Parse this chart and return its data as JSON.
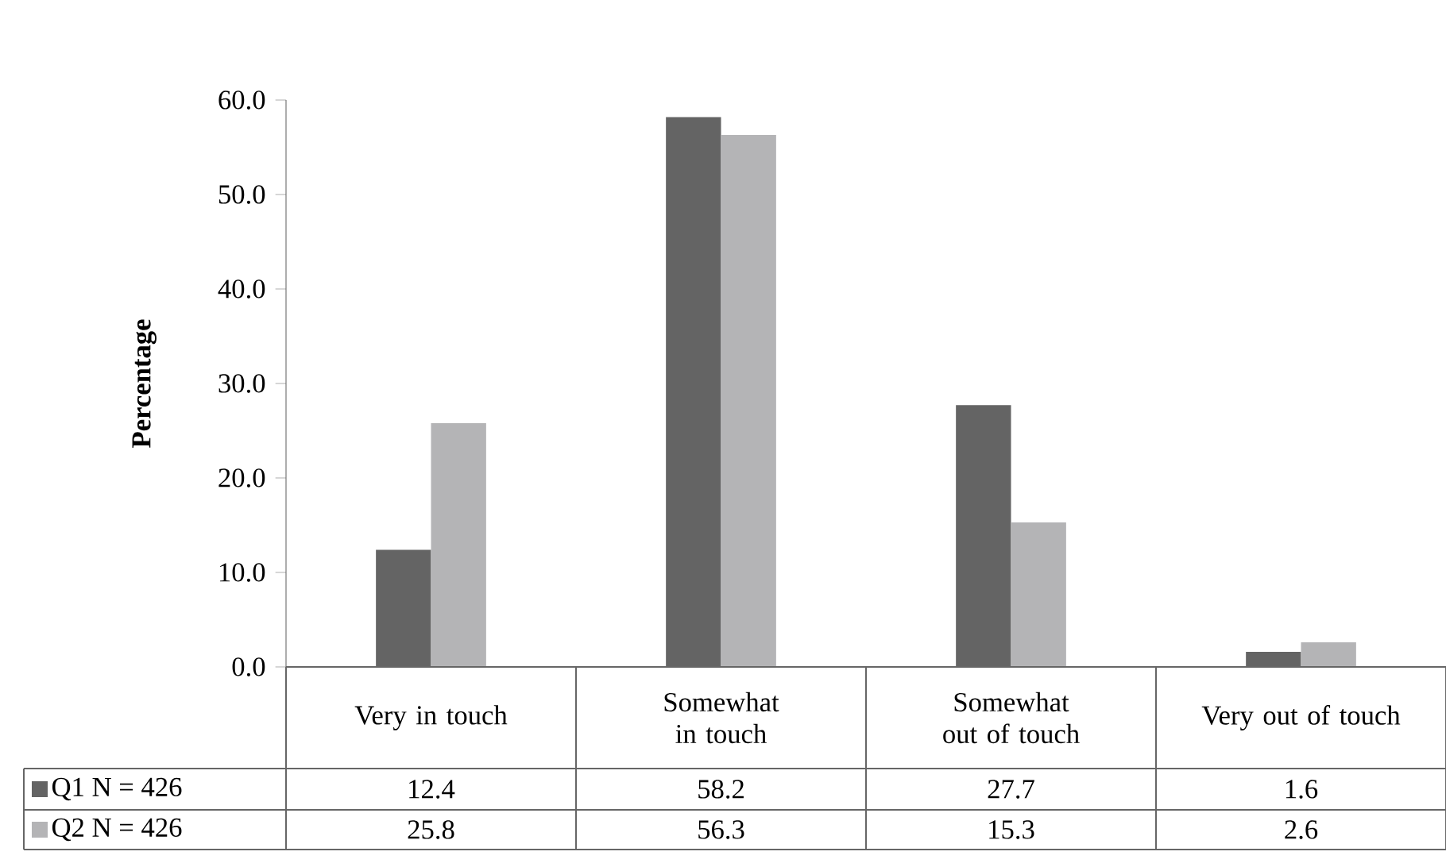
{
  "chart_data": {
    "type": "bar",
    "ylabel": "Percentage",
    "categories": [
      "Very in touch",
      "Somewhat in touch",
      "Somewhat out of touch",
      "Very out of touch"
    ],
    "series": [
      {
        "name": "Q1 N = 426",
        "color": "#646464",
        "values": [
          12.4,
          58.2,
          27.7,
          1.6
        ]
      },
      {
        "name": "Q2 N = 426",
        "color": "#b4b4b6",
        "values": [
          25.8,
          56.3,
          15.3,
          2.6
        ]
      }
    ],
    "ylim": [
      0,
      60
    ],
    "yticks": [
      {
        "value": 0,
        "label": "0.0"
      },
      {
        "value": 10,
        "label": "10.0"
      },
      {
        "value": 20,
        "label": "20.0"
      },
      {
        "value": 30,
        "label": "30.0"
      },
      {
        "value": 40,
        "label": "40.0"
      },
      {
        "value": 50,
        "label": "50.0"
      },
      {
        "value": 60,
        "label": "60.0"
      }
    ],
    "data_labels": true,
    "legend": "bottom",
    "grid": false
  }
}
